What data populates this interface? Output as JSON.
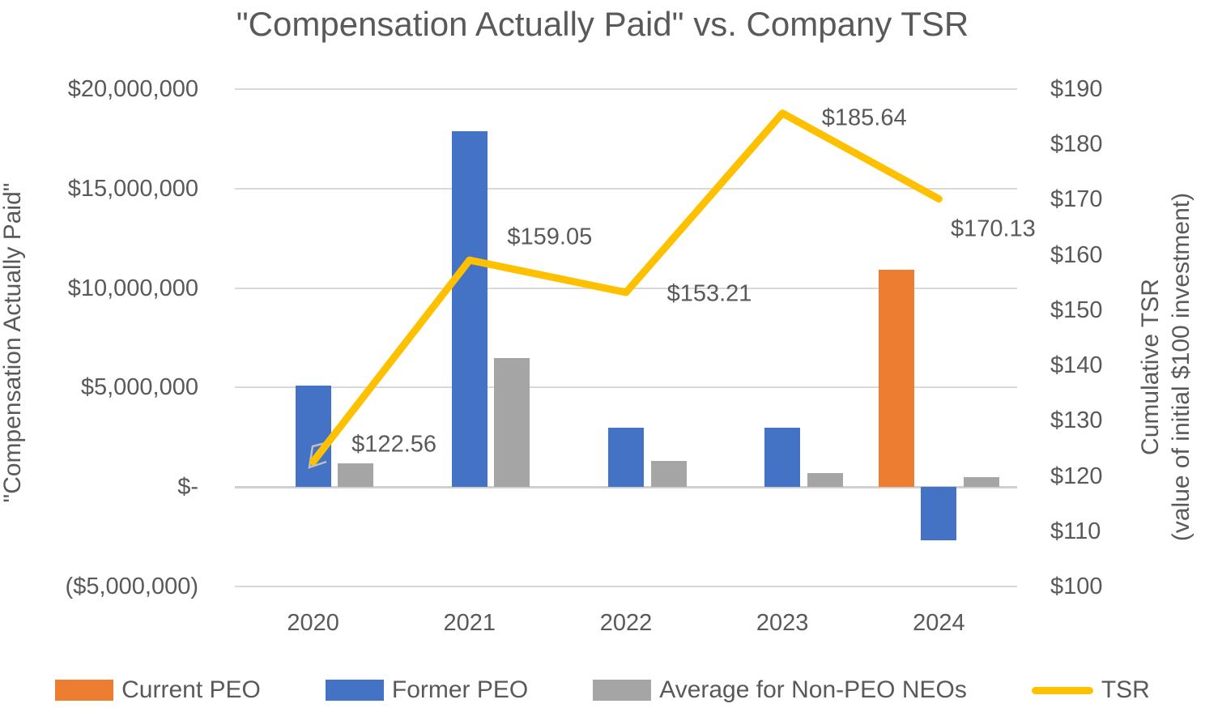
{
  "title": "\"Compensation Actually Paid\" vs. Company TSR",
  "colors": {
    "current_peo": "#ED7D31",
    "former_peo": "#4472C4",
    "avg_non_peo": "#A5A5A5",
    "tsr_line": "#FFC000",
    "text": "#595959",
    "gridline": "#D9D9D9"
  },
  "left_axis": {
    "title": "\"Compensation Actually Paid\"",
    "ticks": [
      "$20,000,000",
      "$15,000,000",
      "$10,000,000",
      "$5,000,000",
      "$-",
      "($5,000,000)"
    ],
    "min": -5000000,
    "max": 20000000,
    "step": 5000000
  },
  "right_axis": {
    "title_line1": "Cumulative TSR",
    "title_line2": "(value of initial $100 investment)",
    "ticks": [
      "$190",
      "$180",
      "$170",
      "$160",
      "$150",
      "$140",
      "$130",
      "$120",
      "$110",
      "$100"
    ],
    "min": 100,
    "max": 190,
    "step": 10
  },
  "legend": [
    {
      "label": "Current PEO",
      "color": "#ED7D31",
      "swatch": "rect"
    },
    {
      "label": "Former PEO",
      "color": "#4472C4",
      "swatch": "rect"
    },
    {
      "label": "Average for Non-PEO NEOs",
      "color": "#A5A5A5",
      "swatch": "rect"
    },
    {
      "label": "TSR",
      "color": "#FFC000",
      "swatch": "line"
    }
  ],
  "chart_data": {
    "type": "combo",
    "categories": [
      "2020",
      "2021",
      "2022",
      "2023",
      "2024"
    ],
    "series": [
      {
        "name": "Current PEO",
        "type": "bar",
        "axis": "left",
        "color": "#ED7D31",
        "values": [
          null,
          null,
          null,
          null,
          10900000
        ]
      },
      {
        "name": "Former PEO",
        "type": "bar",
        "axis": "left",
        "color": "#4472C4",
        "values": [
          5100000,
          17900000,
          3000000,
          3000000,
          -2700000
        ]
      },
      {
        "name": "Average for Non-PEO NEOs",
        "type": "bar",
        "axis": "left",
        "color": "#A5A5A5",
        "values": [
          1200000,
          6500000,
          1300000,
          700000,
          500000
        ]
      },
      {
        "name": "TSR",
        "type": "line",
        "axis": "right",
        "color": "#FFC000",
        "values": [
          122.56,
          159.05,
          153.21,
          185.64,
          170.13
        ],
        "point_labels": [
          "$122.56",
          "$159.05",
          "$153.21",
          "$185.64",
          "$170.13"
        ]
      }
    ],
    "left_ylim": [
      -5000000,
      20000000
    ],
    "right_ylim": [
      100,
      190
    ],
    "grid": true,
    "legend_position": "bottom"
  }
}
